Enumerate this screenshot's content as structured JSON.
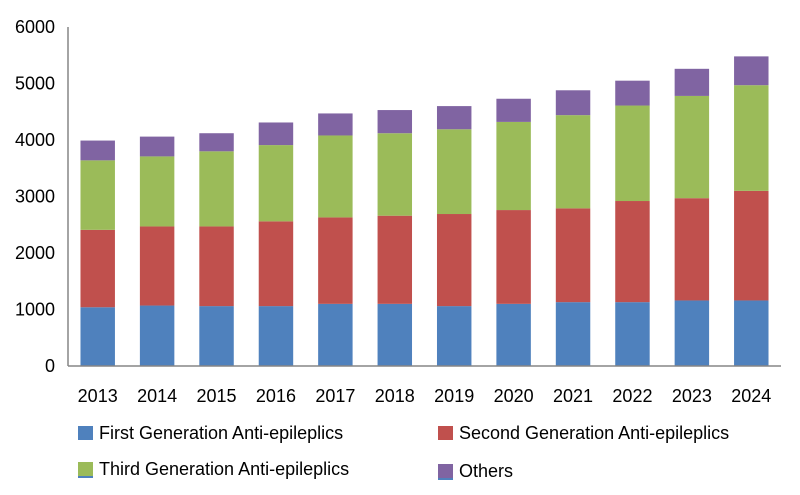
{
  "chart_data": {
    "type": "bar",
    "stacked": true,
    "title": "",
    "xlabel": "",
    "ylabel": "",
    "ylim": [
      0,
      6000
    ],
    "yticks": [
      0,
      1000,
      2000,
      3000,
      4000,
      5000,
      6000
    ],
    "ytick_labels": [
      "0",
      "1000",
      "2000",
      "3000",
      "4000",
      "5000",
      "6000"
    ],
    "grid": false,
    "legend_position": "bottom",
    "categories": [
      "2013",
      "2014",
      "2015",
      "2016",
      "2017",
      "2018",
      "2019",
      "2020",
      "2021",
      "2022",
      "2023",
      "2024"
    ],
    "series": [
      {
        "name": "First Generation Anti-epileplics",
        "color": "#4F81BD",
        "values": [
          1040,
          1070,
          1060,
          1060,
          1100,
          1100,
          1060,
          1100,
          1130,
          1130,
          1160,
          1160
        ]
      },
      {
        "name": "Second Generation Anti-epileplics",
        "color": "#C0504D",
        "values": [
          1370,
          1400,
          1410,
          1500,
          1530,
          1560,
          1630,
          1660,
          1660,
          1790,
          1810,
          1940
        ]
      },
      {
        "name": "Third Generation Anti-epileplics",
        "color": "#9BBB59",
        "values": [
          1230,
          1240,
          1330,
          1350,
          1450,
          1460,
          1500,
          1560,
          1650,
          1690,
          1810,
          1870
        ]
      },
      {
        "name": "Others",
        "color": "#8064A2",
        "values": [
          350,
          350,
          320,
          400,
          390,
          410,
          410,
          410,
          440,
          440,
          480,
          510
        ]
      }
    ]
  },
  "legend": {
    "items": [
      {
        "label": "First Generation Anti-epileplics",
        "color": "#4F81BD"
      },
      {
        "label": "Second Generation Anti-epileplics",
        "color": "#C0504D"
      },
      {
        "label": "Third Generation Anti-epileplics",
        "color": "#9BBB59"
      },
      {
        "label": "Others",
        "color": "#8064A2"
      }
    ]
  },
  "colors": {
    "axis": "#868686"
  }
}
